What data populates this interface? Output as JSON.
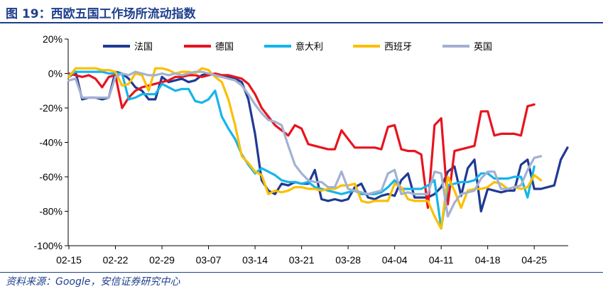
{
  "header": {
    "title": "图 19：西欧五国工作场所流动指数"
  },
  "footer": {
    "source": "资料来源：Google，安信证券研究中心"
  },
  "chart_data": {
    "type": "line",
    "title": "",
    "xlabel": "",
    "ylabel": "",
    "ylim": [
      -100,
      20
    ],
    "yticks": [
      20,
      0,
      -20,
      -40,
      -60,
      -80,
      -100
    ],
    "ytick_labels": [
      "20%",
      "0%",
      "-20%",
      "-40%",
      "-60%",
      "-80%",
      "-100%"
    ],
    "x_range": [
      "02-15",
      "04-26"
    ],
    "xtick_labels": [
      "02-15",
      "02-22",
      "02-29",
      "03-07",
      "03-14",
      "03-21",
      "03-28",
      "04-04",
      "04-11",
      "04-18",
      "04-25"
    ],
    "legend_position": "top",
    "grid": false,
    "series": [
      {
        "name": "法国",
        "color": "#1f3a93",
        "values": [
          -2,
          1,
          -15,
          -14,
          -14,
          -15,
          -14,
          1,
          0,
          -3,
          -8,
          -10,
          -15,
          -15,
          -2,
          -5,
          -4,
          -3,
          -5,
          -4,
          -1,
          0,
          -1,
          -2,
          -2,
          -3,
          -5,
          -15,
          -35,
          -62,
          -68,
          -70,
          -64,
          -65,
          -63,
          -64,
          -64,
          -56,
          -73,
          -74,
          -73,
          -74,
          -73,
          -66,
          -64,
          -72,
          -73,
          -71,
          -70,
          -71,
          -62,
          -58,
          -72,
          -72,
          -72,
          -70,
          -66,
          -57,
          -54,
          -71,
          -55,
          -50,
          -80,
          -67,
          -68,
          -69,
          -68,
          -68,
          -53,
          -50,
          -67,
          -67,
          -66,
          -65,
          -50,
          -43
        ]
      },
      {
        "name": "德国",
        "color": "#e8141e",
        "values": [
          0,
          -1,
          -2,
          -1,
          -3,
          -8,
          -2,
          -1,
          -20,
          -14,
          -10,
          -8,
          -7,
          -6,
          -5,
          -4,
          -2,
          -2,
          -1,
          -1,
          -2,
          -1,
          0,
          -1,
          -1,
          -2,
          -3,
          -6,
          -12,
          -20,
          -25,
          -30,
          -33,
          -36,
          -30,
          -32,
          -41,
          -42,
          -43,
          -44,
          -44,
          -33,
          -38,
          -43,
          -43,
          -43,
          -43,
          -44,
          -31,
          -30,
          -44,
          -45,
          -45,
          -47,
          -78,
          -30,
          -26,
          -76,
          -45,
          -44,
          -43,
          -42,
          -22,
          -22,
          -36,
          -35,
          -35,
          -35,
          -36,
          -19,
          -18
        ]
      },
      {
        "name": "意大利",
        "color": "#16b4ea",
        "values": [
          -1,
          1,
          1,
          1,
          1,
          1,
          0,
          0,
          0,
          -15,
          -14,
          -12,
          -12,
          -12,
          -6,
          -8,
          -10,
          -9,
          -9,
          -16,
          -17,
          -15,
          -10,
          -25,
          -32,
          -38,
          -47,
          -53,
          -58,
          -55,
          -57,
          -59,
          -62,
          -63,
          -63,
          -64,
          -63,
          -66,
          -67,
          -68,
          -69,
          -70,
          -69,
          -68,
          -70,
          -70,
          -70,
          -69,
          -66,
          -62,
          -67,
          -67,
          -67,
          -67,
          -65,
          -62,
          -90,
          -65,
          -64,
          -63,
          -63,
          -62,
          -58,
          -58,
          -61,
          -61,
          -61,
          -60,
          -60,
          -72,
          -54
        ]
      },
      {
        "name": "西班牙",
        "color": "#fbbf00",
        "values": [
          -2,
          3,
          3,
          3,
          3,
          2,
          2,
          1,
          -7,
          -6,
          0,
          -1,
          -10,
          3,
          3,
          2,
          0,
          1,
          1,
          0,
          3,
          2,
          -2,
          -5,
          -15,
          -30,
          -48,
          -52,
          -57,
          -59,
          -70,
          -68,
          -69,
          -68,
          -66,
          -66,
          -67,
          -67,
          -68,
          -67,
          -67,
          -65,
          -65,
          -64,
          -74,
          -75,
          -74,
          -74,
          -74,
          -64,
          -66,
          -73,
          -74,
          -74,
          -74,
          -83,
          -90,
          -60,
          -68,
          -78,
          -68,
          -67,
          -67,
          -66,
          -63,
          -64,
          -67,
          -66,
          -67,
          -66,
          -59,
          -62
        ]
      },
      {
        "name": "英国",
        "color": "#a3b1d1",
        "values": [
          -4,
          -3,
          -14,
          -14,
          -14,
          -14,
          -14,
          -2,
          0,
          -1,
          1,
          0,
          -1,
          -1,
          0,
          -1,
          0,
          -1,
          0,
          1,
          1,
          0,
          -1,
          -2,
          -3,
          -4,
          -7,
          -12,
          -18,
          -23,
          -27,
          -28,
          -30,
          -42,
          -53,
          -58,
          -62,
          -63,
          -63,
          -66,
          -66,
          -57,
          -67,
          -68,
          -69,
          -70,
          -69,
          -68,
          -58,
          -56,
          -70,
          -69,
          -70,
          -70,
          -70,
          -57,
          -58,
          -83,
          -75,
          -70,
          -69,
          -68,
          -61,
          -57,
          -57,
          -67,
          -67,
          -66,
          -65,
          -56,
          -49,
          -48
        ]
      }
    ]
  }
}
